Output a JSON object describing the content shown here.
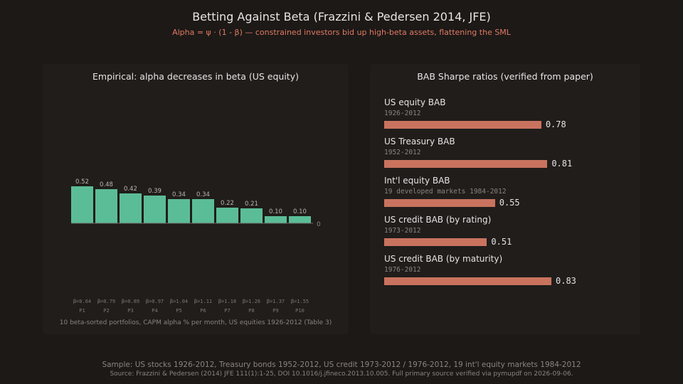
{
  "header": {
    "title": "Betting Against Beta (Frazzini & Pedersen 2014, JFE)",
    "subtitle": "Alpha = ψ · (1 - β) — constrained investors bid up high-beta assets, flattening the SML"
  },
  "left_panel": {
    "title": "Empirical: alpha decreases in beta (US equity)",
    "caption": "10 beta-sorted portfolios, CAPM alpha % per month, US equities 1926-2012 (Table 3)"
  },
  "right_panel": {
    "title": "BAB Sharpe ratios (verified from paper)"
  },
  "chart_data": [
    {
      "type": "bar",
      "title": "Empirical: alpha decreases in beta (US equity)",
      "categories": [
        "P1",
        "P2",
        "P3",
        "P4",
        "P5",
        "P6",
        "P7",
        "P8",
        "P9",
        "P10"
      ],
      "beta_labels": [
        "β=0.64",
        "β=0.79",
        "β=0.89",
        "β=0.97",
        "β=1.04",
        "β=1.11",
        "β=1.18",
        "β=1.26",
        "β=1.37",
        "β=1.55"
      ],
      "values": [
        0.52,
        0.48,
        0.42,
        0.39,
        0.34,
        0.34,
        0.22,
        0.21,
        0.1,
        0.1
      ],
      "value_labels": [
        "0.52",
        "0.48",
        "0.42",
        "0.39",
        "0.34",
        "0.34",
        "0.22",
        "0.21",
        "0.10",
        "0.10"
      ],
      "zero_label": "0",
      "ylim": [
        0,
        0.52
      ],
      "color": "#5bbd97",
      "grid": false
    },
    {
      "type": "bar",
      "orientation": "horizontal",
      "title": "BAB Sharpe ratios (verified from paper)",
      "categories": [
        "US equity BAB",
        "US Treasury BAB",
        "Int'l equity BAB",
        "US credit BAB (by rating)",
        "US credit BAB (by maturity)"
      ],
      "periods": [
        "1926-2012",
        "1952-2012",
        "19 developed markets 1984-2012",
        "1973-2012",
        "1976-2012"
      ],
      "values": [
        0.78,
        0.81,
        0.55,
        0.51,
        0.83
      ],
      "value_labels": [
        "0.78",
        "0.81",
        "0.55",
        "0.51",
        "0.83"
      ],
      "color": "#c9735f",
      "grid": false
    }
  ],
  "footer": {
    "sample": "Sample: US stocks 1926-2012, Treasury bonds 1952-2012, US credit 1973-2012 / 1976-2012, 19 int'l equity markets 1984-2012",
    "source": "Source: Frazzini & Pedersen (2014) JFE 111(1):1-25, DOI 10.1016/j.jfineco.2013.10.005. Full primary source verified via pymupdf on 2026-09-06."
  }
}
